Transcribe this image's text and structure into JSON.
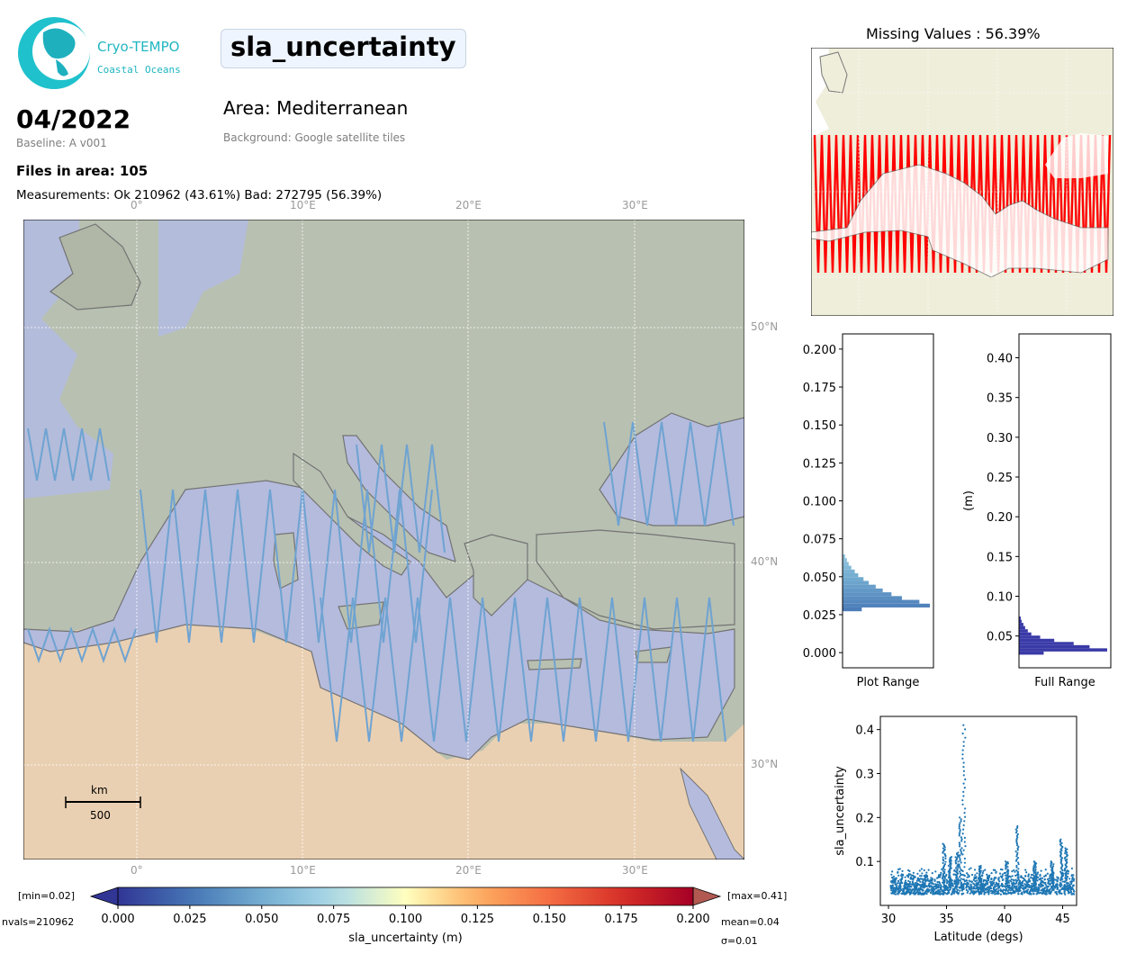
{
  "header": {
    "logo_title": "Cryo-TEMPO",
    "logo_subtitle": "Coastal Oceans",
    "date": "04/2022",
    "baseline": "Baseline: A v001",
    "files": "Files in area: 105",
    "measurements": "Measurements: Ok 210962 (43.61%) Bad: 272795 (56.39%)",
    "parameter": "sla_uncertainty",
    "area": "Area: Mediterranean",
    "background": "Background: Google satellite tiles"
  },
  "map": {
    "lon_labels": [
      "0°",
      "10°E",
      "20°E",
      "30°E"
    ],
    "lat_labels": [
      "50°N",
      "40°N",
      "30°N"
    ],
    "scalebar_unit": "km",
    "scalebar_value": "500",
    "colors": {
      "sea": "#a3aed2",
      "land": "#a8b3a0",
      "desert": "#e8cba8",
      "track": "#4f8fc8"
    }
  },
  "missing_map": {
    "title": "Missing Values : 56.39%",
    "colors": {
      "land": "#efeedb",
      "missing": "#ff0000"
    }
  },
  "colorbar": {
    "label": "sla_uncertainty (m)",
    "min_label": "[min=0.02]",
    "max_label": "[max=0.41]",
    "nvals": "nvals=210962",
    "mean": "mean=0.04",
    "sigma": "σ=0.01",
    "ticks": [
      "0.000",
      "0.025",
      "0.050",
      "0.075",
      "0.100",
      "0.125",
      "0.150",
      "0.175",
      "0.200"
    ],
    "range": [
      0.0,
      0.2
    ],
    "colormap": "RdYlBu_r"
  },
  "chart_data": [
    {
      "type": "bar",
      "orientation": "horizontal",
      "xlabel": "Plot Range",
      "ylim": [
        -0.01,
        0.21
      ],
      "yticks": [
        "0.000",
        "0.025",
        "0.050",
        "0.075",
        "0.100",
        "0.125",
        "0.150",
        "0.175",
        "0.200"
      ],
      "bins": [
        0.0285,
        0.031,
        0.0335,
        0.036,
        0.0385,
        0.041,
        0.0435,
        0.046,
        0.0485,
        0.051,
        0.0535,
        0.056,
        0.0585,
        0.061,
        0.0635
      ],
      "values": [
        22,
        100,
        88,
        68,
        56,
        46,
        38,
        30,
        24,
        18,
        14,
        10,
        7,
        5,
        3
      ]
    },
    {
      "type": "bar",
      "orientation": "horizontal",
      "xlabel": "Full Range",
      "ylabel": "(m)",
      "ylim": [
        0.01,
        0.43
      ],
      "yticks": [
        "0.05",
        "0.10",
        "0.15",
        "0.20",
        "0.25",
        "0.30",
        "0.35",
        "0.40"
      ],
      "bins": [
        0.0285,
        0.0325,
        0.0365,
        0.0405,
        0.0445,
        0.0485,
        0.0525,
        0.0565,
        0.0605,
        0.0645,
        0.0685,
        0.0725
      ],
      "values": [
        28,
        100,
        80,
        62,
        40,
        24,
        14,
        10,
        7,
        5,
        3,
        2
      ]
    },
    {
      "type": "scatter",
      "xlabel": "Latitude (degs)",
      "ylabel": "sla_uncertainty",
      "xlim": [
        29.3,
        46.2
      ],
      "ylim": [
        0.0,
        0.43
      ],
      "xticks": [
        "30",
        "35",
        "40",
        "45"
      ],
      "yticks": [
        "0.1",
        "0.2",
        "0.3",
        "0.4"
      ],
      "color": "#1f77b4",
      "spikes": [
        {
          "x": 34.8,
          "y": 0.14
        },
        {
          "x": 35.3,
          "y": 0.11
        },
        {
          "x": 35.9,
          "y": 0.12
        },
        {
          "x": 36.2,
          "y": 0.2
        },
        {
          "x": 36.5,
          "y": 0.41
        },
        {
          "x": 37.9,
          "y": 0.09
        },
        {
          "x": 40.2,
          "y": 0.1
        },
        {
          "x": 41.1,
          "y": 0.18
        },
        {
          "x": 42.6,
          "y": 0.1
        },
        {
          "x": 44.1,
          "y": 0.1
        },
        {
          "x": 44.9,
          "y": 0.15
        },
        {
          "x": 45.3,
          "y": 0.13
        }
      ]
    }
  ]
}
